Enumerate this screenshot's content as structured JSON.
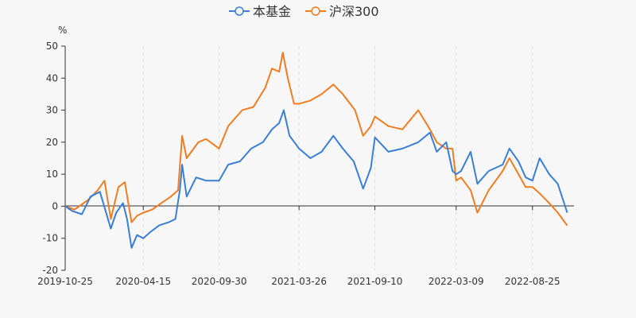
{
  "chart_data": {
    "type": "line",
    "ylabel": "%",
    "ylim": [
      -20,
      50
    ],
    "yticks": [
      -20,
      -10,
      0,
      10,
      20,
      30,
      40,
      50
    ],
    "x_range": [
      "2019-10-25",
      "2022-11-25"
    ],
    "xticks": [
      "2019-10-25",
      "2020-04-15",
      "2020-09-30",
      "2021-03-26",
      "2021-09-10",
      "2022-03-09",
      "2022-08-25"
    ],
    "legend_position": "top-center",
    "grid": {
      "x": true,
      "y": false
    },
    "series": [
      {
        "name": "本基金",
        "color": "#3a7fd5",
        "points": [
          [
            "2019-10-25",
            0
          ],
          [
            "2019-11-10",
            -1.5
          ],
          [
            "2019-12-01",
            -2.5
          ],
          [
            "2019-12-20",
            3
          ],
          [
            "2020-01-10",
            4.5
          ],
          [
            "2020-02-03",
            -7
          ],
          [
            "2020-02-15",
            -2
          ],
          [
            "2020-03-01",
            1
          ],
          [
            "2020-03-10",
            -4
          ],
          [
            "2020-03-20",
            -13
          ],
          [
            "2020-04-01",
            -9
          ],
          [
            "2020-04-15",
            -10
          ],
          [
            "2020-05-01",
            -8
          ],
          [
            "2020-05-20",
            -6
          ],
          [
            "2020-06-10",
            -5
          ],
          [
            "2020-06-25",
            -4
          ],
          [
            "2020-07-05",
            5
          ],
          [
            "2020-07-10",
            13
          ],
          [
            "2020-07-20",
            3
          ],
          [
            "2020-08-10",
            9
          ],
          [
            "2020-09-01",
            8
          ],
          [
            "2020-09-30",
            8
          ],
          [
            "2020-10-20",
            13
          ],
          [
            "2020-11-15",
            14
          ],
          [
            "2020-12-10",
            18
          ],
          [
            "2021-01-05",
            20
          ],
          [
            "2021-01-25",
            24
          ],
          [
            "2021-02-10",
            26
          ],
          [
            "2021-02-20",
            30
          ],
          [
            "2021-03-05",
            22
          ],
          [
            "2021-03-26",
            18
          ],
          [
            "2021-04-20",
            15
          ],
          [
            "2021-05-15",
            17
          ],
          [
            "2021-06-10",
            22
          ],
          [
            "2021-07-01",
            18
          ],
          [
            "2021-07-25",
            14
          ],
          [
            "2021-08-15",
            5.5
          ],
          [
            "2021-09-01",
            12
          ],
          [
            "2021-09-10",
            21.5
          ],
          [
            "2021-10-10",
            17
          ],
          [
            "2021-11-10",
            18
          ],
          [
            "2021-12-15",
            20
          ],
          [
            "2022-01-10",
            23
          ],
          [
            "2022-01-25",
            17
          ],
          [
            "2022-02-15",
            20
          ],
          [
            "2022-03-01",
            11
          ],
          [
            "2022-03-09",
            10
          ],
          [
            "2022-03-20",
            11
          ],
          [
            "2022-04-10",
            17
          ],
          [
            "2022-04-25",
            7
          ],
          [
            "2022-05-20",
            11
          ],
          [
            "2022-06-20",
            13
          ],
          [
            "2022-07-05",
            18
          ],
          [
            "2022-07-25",
            14
          ],
          [
            "2022-08-10",
            9
          ],
          [
            "2022-08-25",
            8
          ],
          [
            "2022-09-10",
            15
          ],
          [
            "2022-10-01",
            10
          ],
          [
            "2022-10-20",
            7
          ],
          [
            "2022-11-10",
            -2
          ]
        ]
      },
      {
        "name": "沪深300",
        "color": "#f07d23",
        "points": [
          [
            "2019-10-25",
            0
          ],
          [
            "2019-11-15",
            -1
          ],
          [
            "2019-12-15",
            2
          ],
          [
            "2020-01-05",
            5
          ],
          [
            "2020-01-20",
            8
          ],
          [
            "2020-02-03",
            -4
          ],
          [
            "2020-02-20",
            6
          ],
          [
            "2020-03-05",
            7.5
          ],
          [
            "2020-03-20",
            -5
          ],
          [
            "2020-04-01",
            -3
          ],
          [
            "2020-04-15",
            -2
          ],
          [
            "2020-05-05",
            -1
          ],
          [
            "2020-05-25",
            1
          ],
          [
            "2020-06-15",
            3
          ],
          [
            "2020-07-01",
            5
          ],
          [
            "2020-07-10",
            22
          ],
          [
            "2020-07-20",
            15
          ],
          [
            "2020-08-15",
            20
          ],
          [
            "2020-09-01",
            21
          ],
          [
            "2020-09-30",
            18
          ],
          [
            "2020-10-20",
            25
          ],
          [
            "2020-11-20",
            30
          ],
          [
            "2020-12-15",
            31
          ],
          [
            "2021-01-10",
            37
          ],
          [
            "2021-01-25",
            43
          ],
          [
            "2021-02-10",
            42
          ],
          [
            "2021-02-18",
            48
          ],
          [
            "2021-03-01",
            40
          ],
          [
            "2021-03-15",
            32
          ],
          [
            "2021-03-26",
            32
          ],
          [
            "2021-04-20",
            33
          ],
          [
            "2021-05-15",
            35
          ],
          [
            "2021-06-10",
            38
          ],
          [
            "2021-07-01",
            35
          ],
          [
            "2021-07-28",
            30
          ],
          [
            "2021-08-15",
            22
          ],
          [
            "2021-09-01",
            25
          ],
          [
            "2021-09-10",
            28
          ],
          [
            "2021-10-10",
            25
          ],
          [
            "2021-11-10",
            24
          ],
          [
            "2021-12-15",
            30
          ],
          [
            "2022-01-10",
            24
          ],
          [
            "2022-01-25",
            20
          ],
          [
            "2022-02-15",
            18
          ],
          [
            "2022-03-01",
            18
          ],
          [
            "2022-03-09",
            8
          ],
          [
            "2022-03-20",
            9
          ],
          [
            "2022-04-10",
            5
          ],
          [
            "2022-04-25",
            -2
          ],
          [
            "2022-05-20",
            5
          ],
          [
            "2022-06-20",
            11
          ],
          [
            "2022-07-05",
            15
          ],
          [
            "2022-07-25",
            10
          ],
          [
            "2022-08-10",
            6
          ],
          [
            "2022-08-25",
            6
          ],
          [
            "2022-09-10",
            4
          ],
          [
            "2022-10-01",
            1
          ],
          [
            "2022-10-20",
            -2
          ],
          [
            "2022-11-10",
            -6
          ]
        ]
      }
    ]
  }
}
